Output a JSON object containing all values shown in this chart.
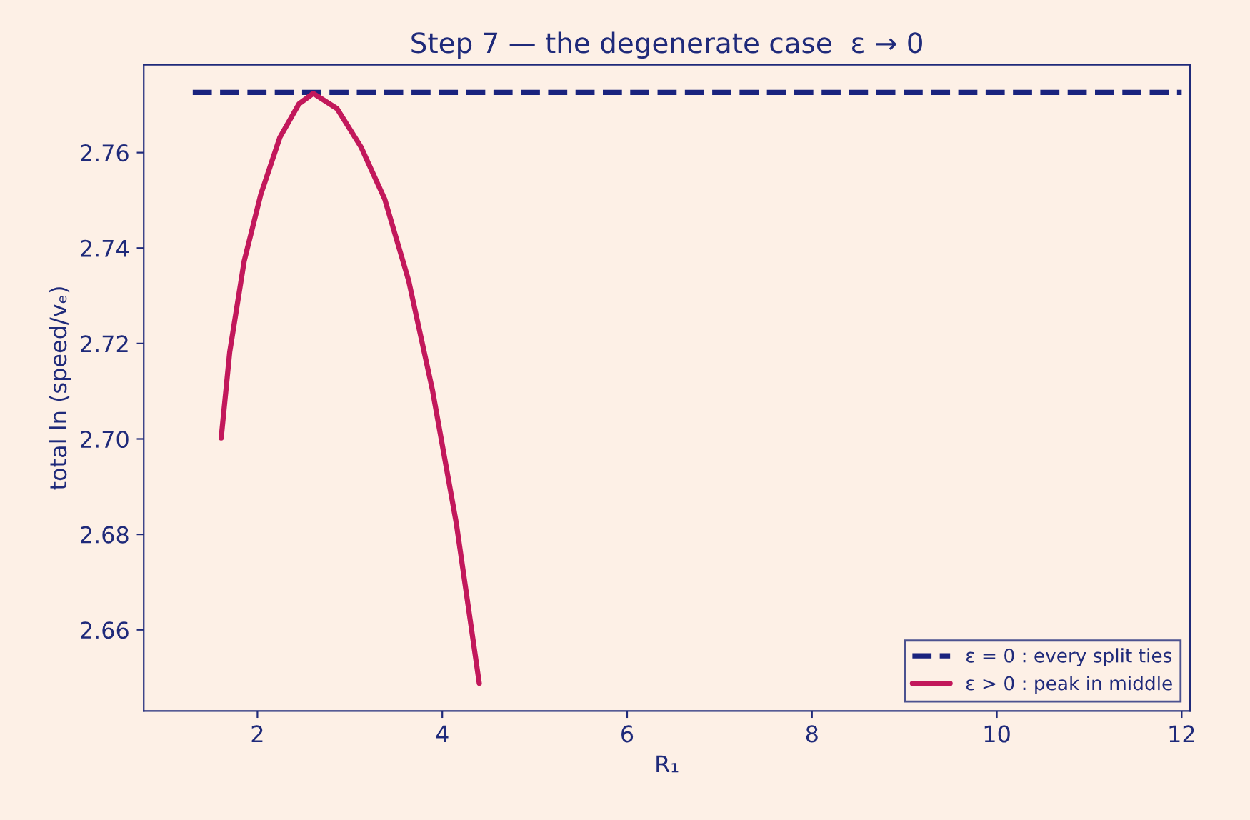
{
  "chart_data": {
    "type": "line",
    "title": "Step 7 — the degenerate case  ε → 0",
    "xlabel": "R₁",
    "ylabel": "total ln (speed/vₑ)",
    "xlim": [
      0.77,
      12.09
    ],
    "xticks": [
      2,
      4,
      6,
      8,
      10,
      12
    ],
    "ylim": [
      2.643,
      2.7784
    ],
    "yticks": [
      2.66,
      2.68,
      {
        "value": 2.7,
        "label": "2.70"
      },
      2.72,
      2.74,
      2.76
    ],
    "grid": false,
    "legend": "lower right",
    "series": [
      {
        "name": "ε = 0 : every split ties",
        "color": "#1a237e",
        "line_style": "dashed",
        "x": [
          1.3,
          12.0
        ],
        "values": [
          2.7726,
          2.7726
        ]
      },
      {
        "name": "ε > 0 : peak in middle",
        "color": "#c2185b",
        "line_style": "solid",
        "x": [
          1.608,
          1.7,
          1.856,
          2.036,
          2.243,
          2.449,
          2.604,
          2.862,
          3.12,
          3.378,
          3.636,
          3.893,
          4.152,
          4.4
        ],
        "values": [
          2.7002,
          2.7182,
          2.7372,
          2.7512,
          2.7632,
          2.7702,
          2.7724,
          2.7692,
          2.7612,
          2.7502,
          2.7332,
          2.7103,
          2.6823,
          2.6488
        ]
      }
    ]
  }
}
